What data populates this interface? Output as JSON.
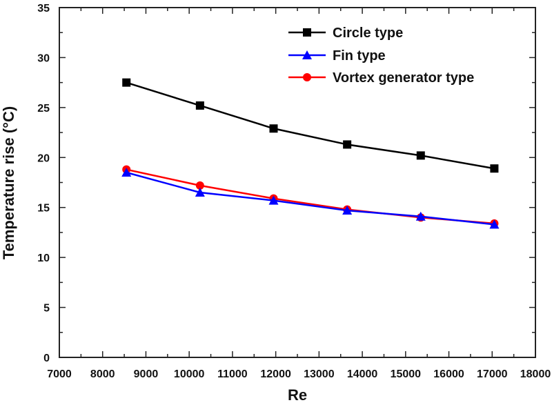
{
  "chart_data": {
    "type": "line",
    "title": "",
    "xlabel": "Re",
    "ylabel": "Temperature rise (°C)",
    "xlim": [
      7000,
      18000
    ],
    "ylim": [
      0,
      35
    ],
    "xticks": [
      7000,
      8000,
      9000,
      10000,
      11000,
      12000,
      13000,
      14000,
      15000,
      16000,
      17000,
      18000
    ],
    "yticks": [
      0,
      5,
      10,
      15,
      20,
      25,
      30,
      35
    ],
    "grid": false,
    "legend_position": "top-right",
    "x": [
      8550,
      10250,
      11950,
      13650,
      15350,
      17050
    ],
    "series": [
      {
        "name": "Circle type",
        "color": "#000000",
        "marker": "square",
        "values": [
          27.5,
          25.2,
          22.9,
          21.3,
          20.2,
          18.9
        ]
      },
      {
        "name": "Fin type",
        "color": "#0000ff",
        "marker": "triangle",
        "values": [
          18.5,
          16.5,
          15.7,
          14.7,
          14.1,
          13.3
        ]
      },
      {
        "name": "Vortex generator type",
        "color": "#ff0000",
        "marker": "circle",
        "values": [
          18.8,
          17.2,
          15.9,
          14.8,
          14.0,
          13.4
        ]
      }
    ]
  }
}
